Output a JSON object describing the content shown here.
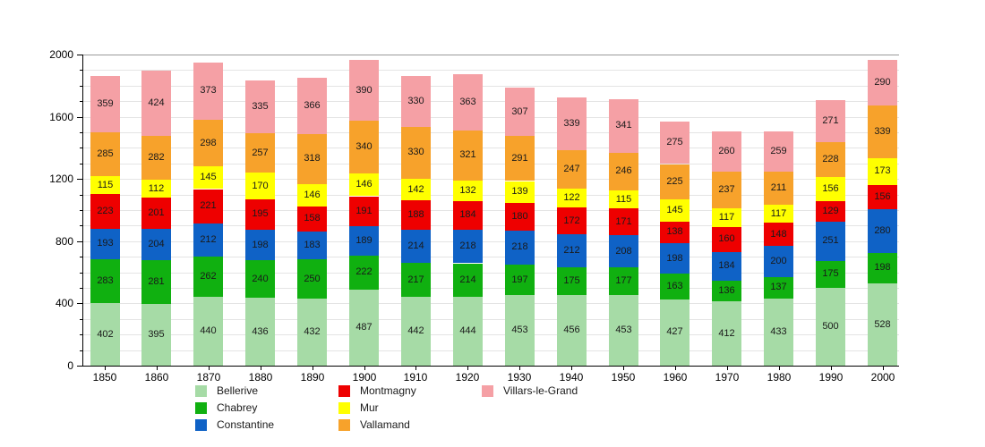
{
  "chart_data": {
    "type": "bar",
    "stacked": true,
    "title": "",
    "xlabel": "",
    "ylabel": "",
    "categories": [
      "1850",
      "1860",
      "1870",
      "1880",
      "1890",
      "1900",
      "1910",
      "1920",
      "1930",
      "1940",
      "1950",
      "1960",
      "1970",
      "1980",
      "1990",
      "2000"
    ],
    "series": [
      {
        "name": "Bellerive",
        "color": "#a6dba6",
        "values": [
          402,
          395,
          440,
          436,
          432,
          487,
          442,
          444,
          453,
          456,
          453,
          427,
          412,
          433,
          500,
          528
        ]
      },
      {
        "name": "Chabrey",
        "color": "#10b010",
        "values": [
          283,
          281,
          262,
          240,
          250,
          222,
          217,
          214,
          197,
          175,
          177,
          163,
          136,
          137,
          175,
          198
        ]
      },
      {
        "name": "Constantine",
        "color": "#0f62c6",
        "values": [
          193,
          204,
          212,
          198,
          183,
          189,
          214,
          218,
          218,
          212,
          208,
          198,
          184,
          200,
          251,
          280
        ]
      },
      {
        "name": "Montmagny",
        "color": "#ee0000",
        "values": [
          223,
          201,
          221,
          195,
          158,
          191,
          188,
          184,
          180,
          172,
          171,
          138,
          160,
          148,
          129,
          156
        ]
      },
      {
        "name": "Mur",
        "color": "#ffff00",
        "values": [
          115,
          112,
          145,
          170,
          146,
          146,
          142,
          132,
          139,
          122,
          115,
          145,
          117,
          117,
          156,
          173
        ]
      },
      {
        "name": "Vallamand",
        "color": "#f7a22b",
        "values": [
          285,
          282,
          298,
          257,
          318,
          340,
          330,
          321,
          291,
          247,
          246,
          225,
          237,
          211,
          228,
          339
        ]
      },
      {
        "name": "Villars-le-Grand",
        "color": "#f5a0a5",
        "values": [
          359,
          424,
          373,
          335,
          366,
          390,
          330,
          363,
          307,
          339,
          341,
          275,
          260,
          259,
          271,
          290
        ]
      }
    ],
    "ylim": [
      0,
      2000
    ],
    "yticks": [
      "0",
      "400",
      "800",
      "1200",
      "1600",
      "2000"
    ],
    "minor_grid_step": 100,
    "grid": true,
    "legend_position": "bottom",
    "legend_columns": [
      [
        "Bellerive",
        "Chabrey",
        "Constantine"
      ],
      [
        "Montmagny",
        "Mur",
        "Vallamand"
      ],
      [
        "Villars-le-Grand"
      ]
    ]
  }
}
